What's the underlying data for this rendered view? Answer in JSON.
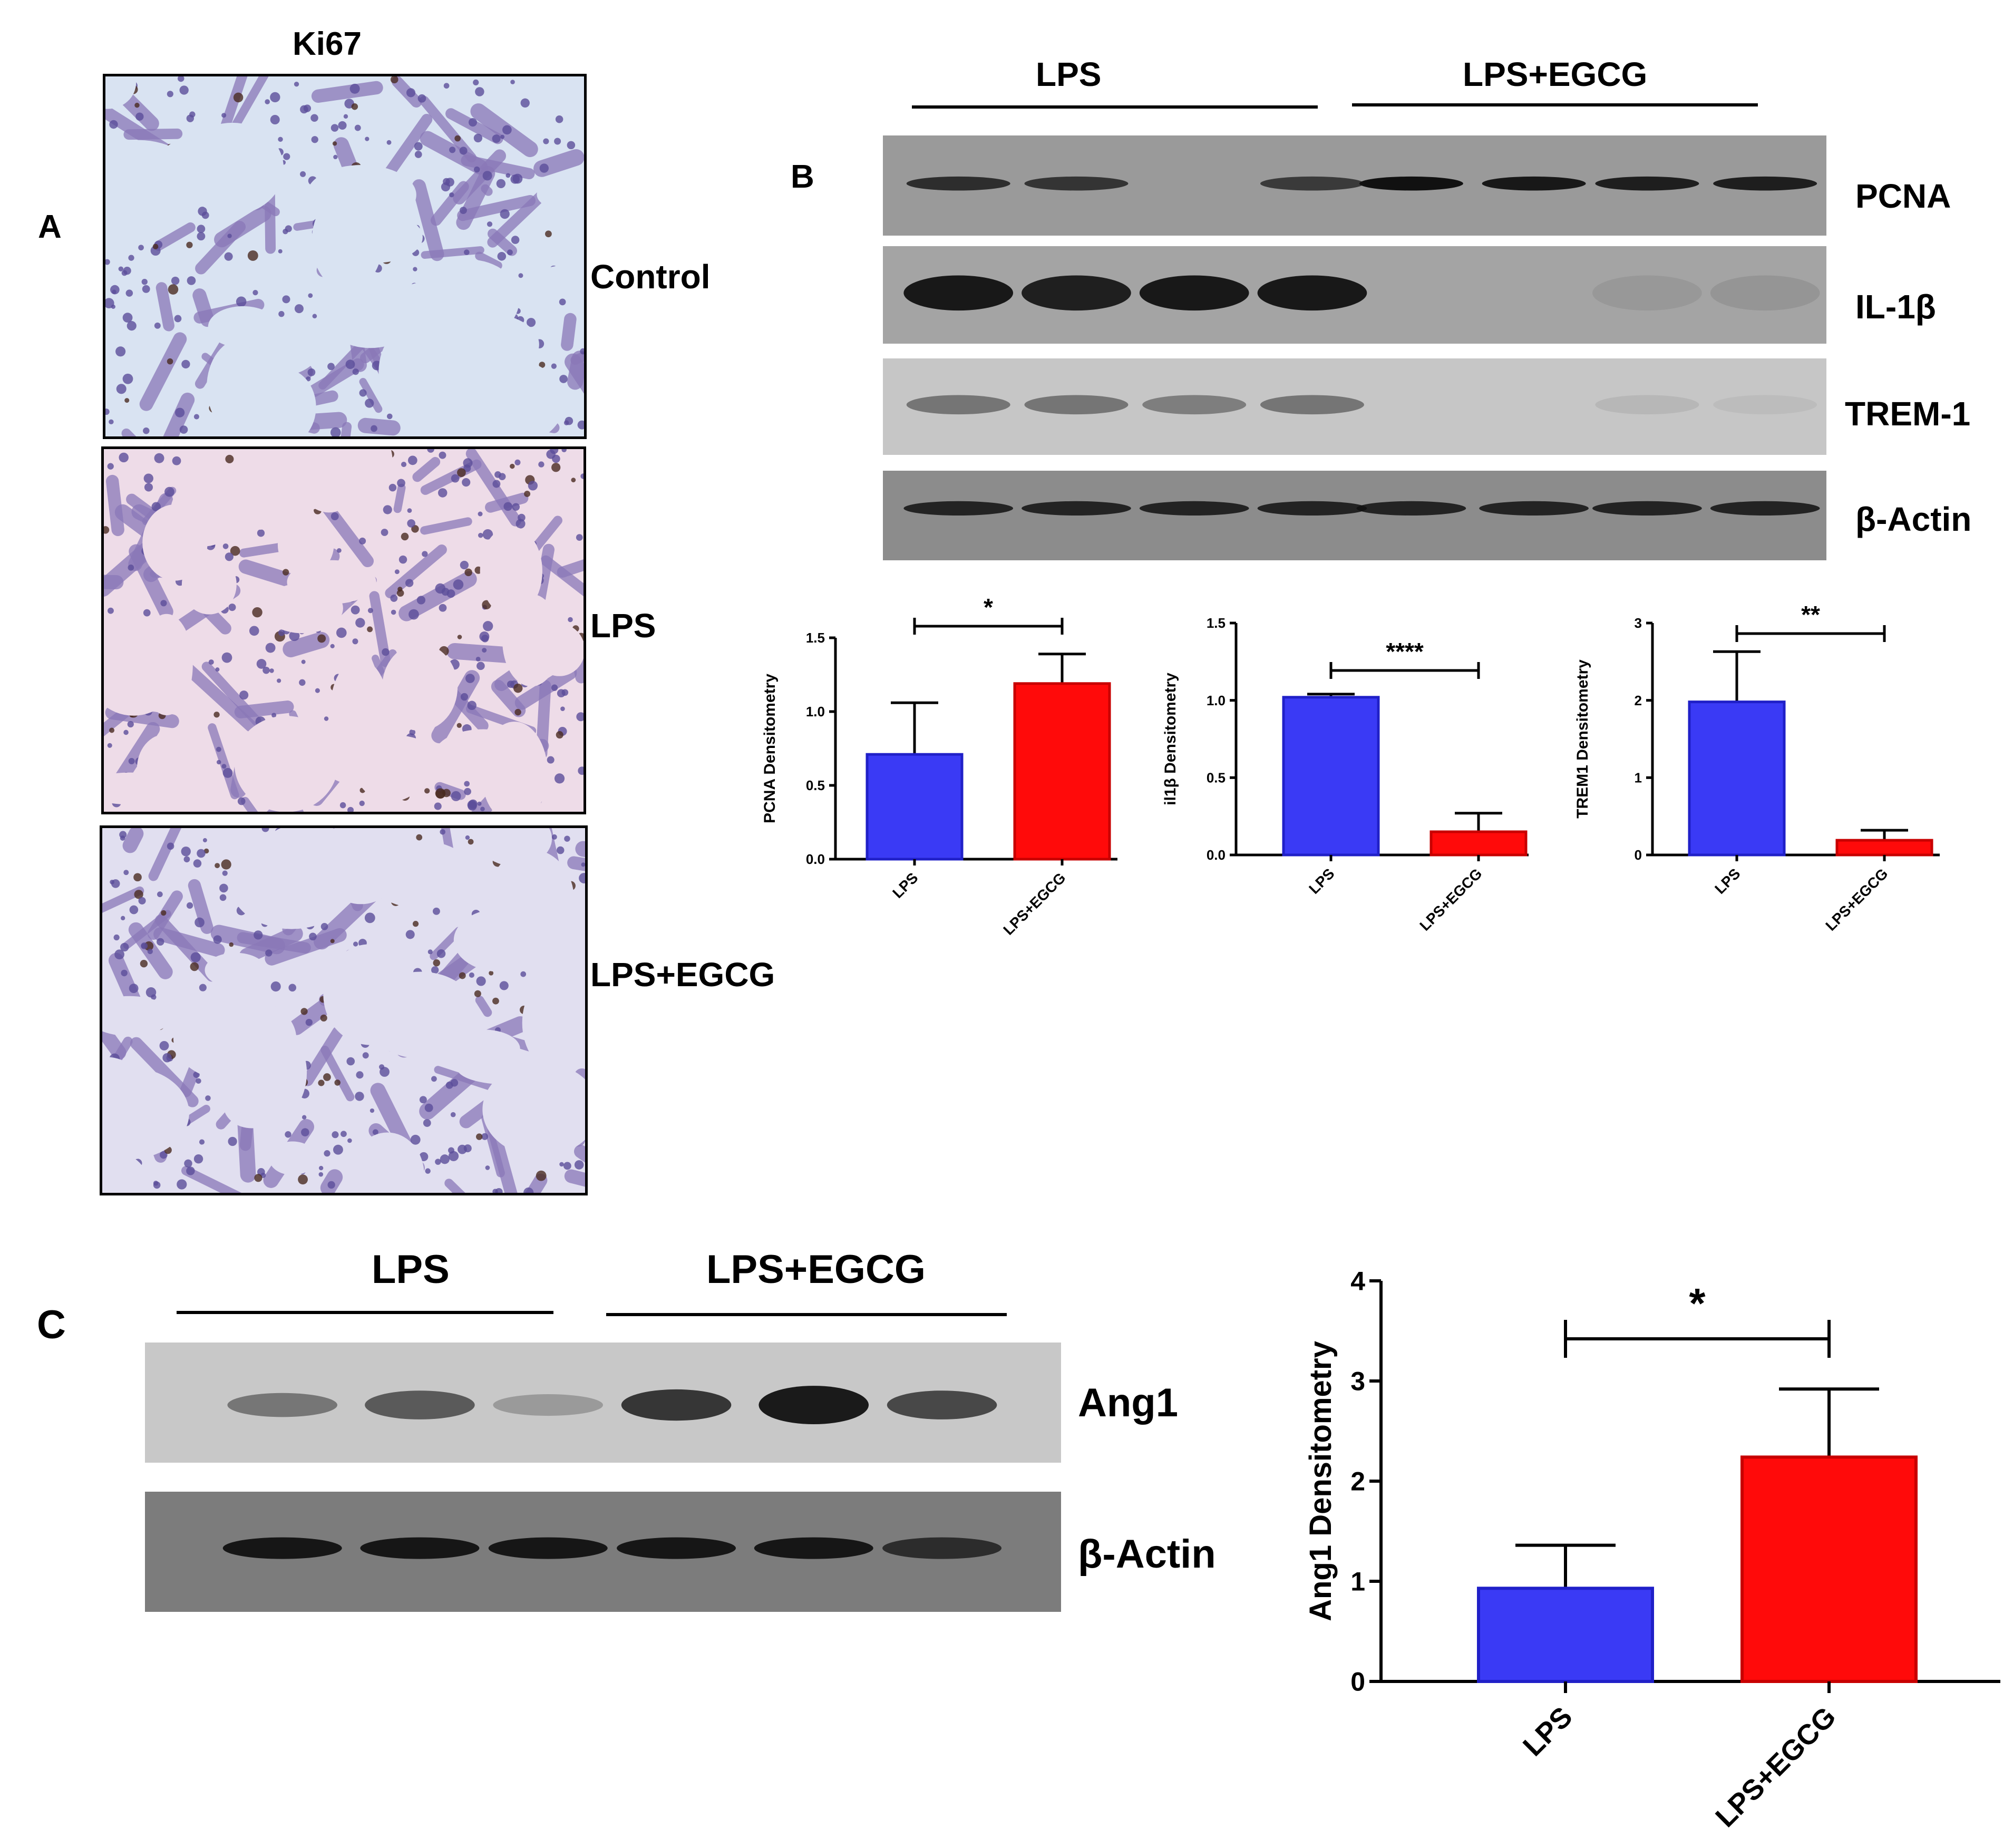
{
  "panelA": {
    "letter": "A",
    "title": "Ki67",
    "rows": [
      {
        "label": "Control",
        "tint": "#d9e3f2"
      },
      {
        "label": "LPS",
        "tint": "#eedce8"
      },
      {
        "label": "LPS+EGCG",
        "tint": "#e1dff0"
      }
    ]
  },
  "panelB": {
    "letter": "B",
    "group_left": "LPS",
    "group_right": "LPS+EGCG",
    "blots": [
      {
        "label": "PCNA"
      },
      {
        "label": "IL-1β"
      },
      {
        "label": "TREM-1"
      },
      {
        "label": "β-Actin"
      }
    ]
  },
  "panelC": {
    "letter": "C",
    "group_left": "LPS",
    "group_right": "LPS+EGCG",
    "blots": [
      {
        "label": "Ang1"
      },
      {
        "label": "β-Actin"
      }
    ]
  },
  "colors": {
    "lps": "#3a3af5",
    "egcg": "#ff0a0a",
    "lps_edge": "#2020c8",
    "egcg_edge": "#c80000"
  },
  "chart_data": [
    {
      "type": "bar",
      "ylabel": "PCNA Densitometry",
      "categories": [
        "LPS",
        "LPS+EGCG"
      ],
      "values": [
        0.71,
        1.19
      ],
      "errors": [
        0.35,
        0.2
      ],
      "ylim": [
        0,
        1.5
      ],
      "yticks": [
        "0.0",
        "0.5",
        "1.0",
        "1.5"
      ],
      "significance": "*"
    },
    {
      "type": "bar",
      "ylabel": "il1β Densitometry",
      "categories": [
        "LPS",
        "LPS+EGCG"
      ],
      "values": [
        1.02,
        0.15
      ],
      "errors": [
        0.02,
        0.12
      ],
      "ylim": [
        0,
        1.5
      ],
      "yticks": [
        "0.0",
        "0.5",
        "1.0",
        "1.5"
      ],
      "significance": "****"
    },
    {
      "type": "bar",
      "ylabel": "TREM1 Densitometry",
      "categories": [
        "LPS",
        "LPS+EGCG"
      ],
      "values": [
        1.98,
        0.19
      ],
      "errors": [
        0.65,
        0.13
      ],
      "ylim": [
        0,
        3
      ],
      "yticks": [
        "0",
        "1",
        "2",
        "3"
      ],
      "significance": "**"
    },
    {
      "type": "bar",
      "ylabel": "Ang1 Densitometry",
      "categories": [
        "LPS",
        "LPS+EGCG"
      ],
      "values": [
        0.93,
        2.24
      ],
      "errors": [
        0.43,
        0.68
      ],
      "ylim": [
        0,
        4
      ],
      "yticks": [
        "0",
        "1",
        "2",
        "3",
        "4"
      ],
      "significance": "*"
    }
  ]
}
